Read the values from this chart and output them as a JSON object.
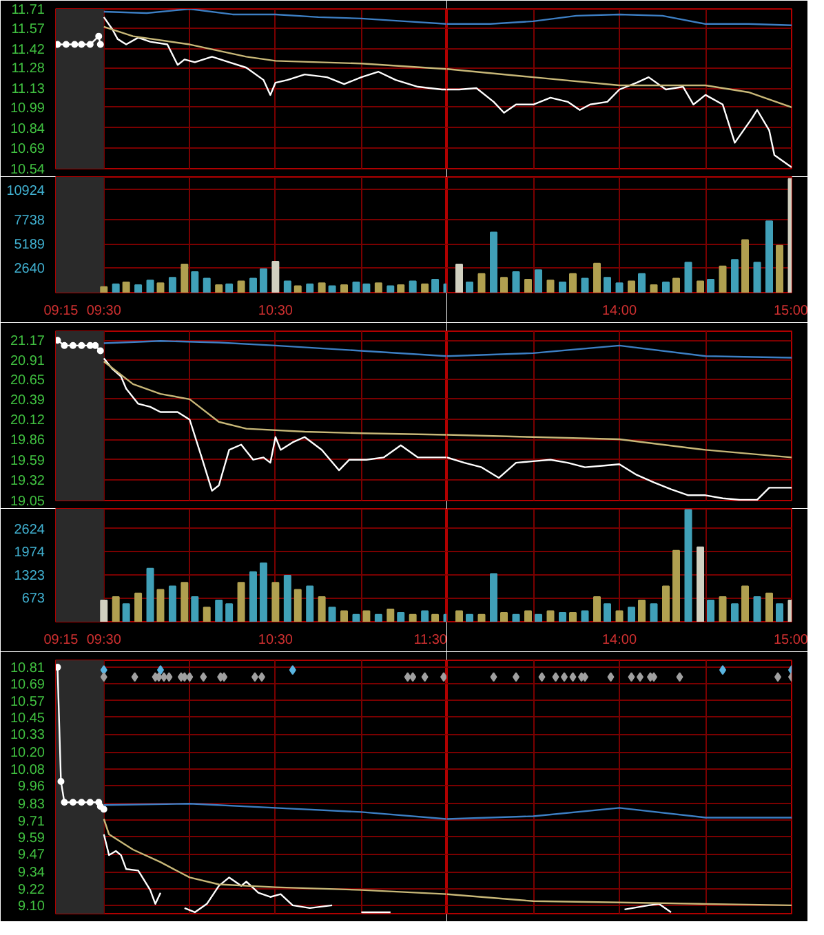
{
  "chart_data": [
    {
      "type": "line",
      "xlim": [
        9.22,
        11.5
      ],
      "ylim": [
        10.54,
        11.71
      ],
      "tick_labels": "y",
      "grid": true,
      "xticks": [
        {
          "value": 9.25,
          "label": null
        },
        {
          "value": 9.5,
          "label": null
        },
        {
          "value": 10,
          "label": null
        },
        {
          "value": 10.5,
          "label": null
        },
        {
          "value": 11,
          "label": null
        },
        {
          "value": 11.5,
          "label": null
        }
      ],
      "yticks": [
        11.71,
        11.57,
        11.42,
        11.28,
        11.13,
        10.99,
        10.84,
        10.69,
        10.54
      ],
      "bands": [
        {
          "axis": "x",
          "from": 9.22,
          "to": 9.5,
          "color": "#2a2a2a"
        }
      ],
      "series": [
        {
          "color": "#ffffff",
          "marker": "circle",
          "x": [
            9.23,
            9.28,
            9.33,
            9.37,
            9.42,
            9.47,
            9.48
          ],
          "values": [
            11.45,
            11.45,
            11.45,
            11.45,
            11.45,
            11.51,
            11.45
          ]
        },
        {
          "color": "#ffffff",
          "x": [
            9.5,
            9.55,
            9.58,
            9.63,
            9.7,
            9.77,
            9.87,
            9.93,
            9.97,
            10.03,
            10.13,
            10.23,
            10.33,
            10.43,
            10.47,
            10.5,
            10.57,
            10.67,
            10.8,
            10.9,
            11,
            11.1,
            11.2,
            11.33,
            11.47,
            11.5
          ],
          "values": [
            11.65,
            11.56,
            11.49,
            11.45,
            11.5,
            11.47,
            11.45,
            11.3,
            11.34,
            11.32,
            11.36,
            11.32,
            11.28,
            11.19,
            11.08,
            11.17,
            11.19,
            11.23,
            11.21,
            11.16,
            11.21,
            11.25,
            11.19,
            11.14,
            11.12,
            11.12
          ]
        },
        {
          "color": "#c8b878",
          "x": [
            9.5,
            9.67,
            10,
            10.33,
            10.5,
            11,
            11.5
          ],
          "values": [
            11.58,
            11.51,
            11.45,
            11.36,
            11.33,
            11.31,
            11.27
          ]
        },
        {
          "color": "#3d7fc4",
          "x": [
            9.5,
            9.75,
            10,
            10.25,
            10.5,
            10.75,
            11,
            11.25,
            11.5
          ],
          "values": [
            11.69,
            11.68,
            11.71,
            11.67,
            11.67,
            11.65,
            11.64,
            11.62,
            11.6
          ]
        }
      ]
    },
    {
      "type": "line",
      "xlim": [
        13,
        15
      ],
      "ylim": [
        10.54,
        11.71
      ],
      "tick_labels": false,
      "grid": true,
      "xticks": [
        {
          "value": 13.5,
          "label": null
        },
        {
          "value": 14,
          "label": null
        },
        {
          "value": 14.5,
          "label": null
        },
        {
          "value": 15,
          "label": null
        }
      ],
      "yticks": [
        11.71,
        11.57,
        11.42,
        11.28,
        11.13,
        10.99,
        10.84,
        10.69,
        10.54
      ],
      "series": [
        {
          "color": "#ffffff",
          "x": [
            13,
            13.07,
            13.17,
            13.27,
            13.33,
            13.4,
            13.5,
            13.6,
            13.7,
            13.77,
            13.83,
            13.93,
            14,
            14.1,
            14.17,
            14.27,
            14.37,
            14.43,
            14.5,
            14.6,
            14.67,
            14.77,
            14.8,
            14.87,
            14.9,
            15
          ],
          "values": [
            11.12,
            11.12,
            11.13,
            11.03,
            10.95,
            11.01,
            11.01,
            11.06,
            11.03,
            10.97,
            11.01,
            11.03,
            11.12,
            11.17,
            11.21,
            11.12,
            11.14,
            11.01,
            11.08,
            11.01,
            10.73,
            10.91,
            10.97,
            10.82,
            10.64,
            10.55
          ]
        },
        {
          "color": "#c8b878",
          "x": [
            13,
            13.5,
            14,
            14.5,
            14.75,
            15
          ],
          "values": [
            11.27,
            11.21,
            11.15,
            11.15,
            11.1,
            10.99
          ]
        },
        {
          "color": "#3d7fc4",
          "x": [
            13,
            13.25,
            13.5,
            13.75,
            14,
            14.25,
            14.5,
            14.75,
            15
          ],
          "values": [
            11.6,
            11.6,
            11.62,
            11.66,
            11.67,
            11.66,
            11.6,
            11.6,
            11.59
          ]
        }
      ]
    },
    {
      "type": "bar",
      "xlim": [
        9.22,
        11.5
      ],
      "ylim": [
        0,
        12300
      ],
      "grid": true,
      "xticks": [
        {
          "value": 9.25,
          "label": "09:15"
        },
        {
          "value": 9.5,
          "label": "09:30"
        },
        {
          "value": 10,
          "label": null
        },
        {
          "value": 10.5,
          "label": "10:30"
        },
        {
          "value": 11,
          "label": null
        },
        {
          "value": 11.5,
          "label": null
        }
      ],
      "yticks": [
        2640,
        5189,
        7738,
        10924
      ],
      "bands": [
        {
          "axis": "x",
          "from": 9.22,
          "to": 9.5,
          "color": "#2a2a2a"
        }
      ],
      "x": [
        9.5,
        9.57,
        9.63,
        9.7,
        9.77,
        9.83,
        9.9,
        9.97,
        10.03,
        10.1,
        10.17,
        10.23,
        10.3,
        10.37,
        10.43,
        10.5,
        10.57,
        10.63,
        10.7,
        10.77,
        10.83,
        10.9,
        10.97,
        11.03,
        11.1,
        11.17,
        11.23,
        11.3,
        11.37,
        11.43,
        11.5
      ],
      "values": [
        600,
        900,
        1100,
        800,
        1300,
        1000,
        1600,
        3000,
        2200,
        1500,
        800,
        900,
        1200,
        1500,
        2500,
        3300,
        1200,
        700,
        900,
        1000,
        700,
        800,
        1100,
        900,
        1000,
        700,
        800,
        1200,
        900,
        1400,
        900
      ],
      "colors": [
        "#b0a050",
        "#40a0b8",
        "#b0a050",
        "#40a0b8",
        "#40a0b8",
        "#b0a050",
        "#40a0b8",
        "#b0a050",
        "#40a0b8",
        "#40a0b8",
        "#b0a050",
        "#40a0b8",
        "#b0a050",
        "#40a0b8",
        "#40a0b8",
        "#d0d0c0",
        "#40a0b8",
        "#b0a050",
        "#40a0b8",
        "#b0a050",
        "#40a0b8",
        "#b0a050",
        "#40a0b8",
        "#40a0b8",
        "#b0a050",
        "#40a0b8",
        "#b0a050",
        "#40a0b8",
        "#b0a050",
        "#40a0b8",
        "#40a0b8"
      ]
    },
    {
      "type": "bar",
      "xlim": [
        13,
        15
      ],
      "ylim": [
        0,
        12300
      ],
      "tick_labels": "x",
      "grid": true,
      "xticks": [
        {
          "value": 13.5,
          "label": null
        },
        {
          "value": 14,
          "label": "14:00"
        },
        {
          "value": 14.5,
          "label": null
        },
        {
          "value": 15,
          "label": "15:00"
        }
      ],
      "yticks": [
        2640,
        5189,
        7738,
        10924
      ],
      "x": [
        13.07,
        13.13,
        13.2,
        13.27,
        13.33,
        13.4,
        13.47,
        13.53,
        13.6,
        13.67,
        13.73,
        13.8,
        13.87,
        13.93,
        14,
        14.07,
        14.13,
        14.2,
        14.27,
        14.33,
        14.4,
        14.47,
        14.53,
        14.6,
        14.67,
        14.73,
        14.8,
        14.87,
        14.93,
        15
      ],
      "values": [
        3000,
        1100,
        2000,
        6400,
        1600,
        2200,
        1400,
        2400,
        1300,
        1100,
        2000,
        1500,
        3100,
        1600,
        1000,
        1200,
        2000,
        800,
        1100,
        1500,
        3200,
        1200,
        1400,
        2800,
        3500,
        5600,
        3200,
        7600,
        5000,
        12100
      ],
      "colors": [
        "#d0d0c0",
        "#40a0b8",
        "#b0a050",
        "#40a0b8",
        "#b0a050",
        "#40a0b8",
        "#b0a050",
        "#40a0b8",
        "#b0a050",
        "#40a0b8",
        "#b0a050",
        "#40a0b8",
        "#b0a050",
        "#40a0b8",
        "#40a0b8",
        "#b0a050",
        "#40a0b8",
        "#b0a050",
        "#40a0b8",
        "#b0a050",
        "#40a0b8",
        "#b0a050",
        "#40a0b8",
        "#b0a050",
        "#40a0b8",
        "#b0a050",
        "#40a0b8",
        "#40a0b8",
        "#b0a050",
        "#d0d0c0"
      ]
    },
    {
      "type": "line",
      "xlim": [
        9.22,
        11.5
      ],
      "ylim": [
        19.05,
        21.29
      ],
      "tick_labels": "y",
      "grid": true,
      "xticks": [
        {
          "value": 9.25,
          "label": null
        },
        {
          "value": 9.5,
          "label": null
        },
        {
          "value": 10,
          "label": null
        },
        {
          "value": 10.5,
          "label": null
        },
        {
          "value": 11,
          "label": null
        },
        {
          "value": 11.5,
          "label": null
        }
      ],
      "yticks": [
        21.17,
        20.91,
        20.65,
        20.39,
        20.12,
        19.86,
        19.59,
        19.32,
        19.05
      ],
      "bands": [
        {
          "axis": "x",
          "from": 9.22,
          "to": 9.5,
          "color": "#2a2a2a"
        }
      ],
      "series": [
        {
          "color": "#ffffff",
          "marker": "circle",
          "x": [
            9.23,
            9.27,
            9.32,
            9.37,
            9.42,
            9.45,
            9.48
          ],
          "values": [
            21.17,
            21.1,
            21.1,
            21.1,
            21.1,
            21.1,
            21.03
          ]
        },
        {
          "color": "#ffffff",
          "x": [
            9.5,
            9.55,
            9.6,
            9.63,
            9.7,
            9.77,
            9.83,
            9.93,
            10,
            10.07,
            10.13,
            10.17,
            10.23,
            10.3,
            10.37,
            10.43,
            10.47,
            10.5,
            10.53,
            10.6,
            10.67,
            10.77,
            10.87,
            10.93,
            11.03,
            11.13,
            11.23,
            11.33,
            11.43,
            11.5
          ],
          "values": [
            20.93,
            20.79,
            20.69,
            20.53,
            20.33,
            20.29,
            20.22,
            20.22,
            20.12,
            19.62,
            19.18,
            19.25,
            19.72,
            19.79,
            19.59,
            19.62,
            19.55,
            19.89,
            19.72,
            19.82,
            19.89,
            19.72,
            19.45,
            19.59,
            19.59,
            19.62,
            19.78,
            19.62,
            19.62,
            19.62
          ]
        },
        {
          "color": "#c8b878",
          "x": [
            9.5,
            9.67,
            9.83,
            10,
            10.17,
            10.33,
            10.67,
            11,
            11.5
          ],
          "values": [
            20.89,
            20.59,
            20.46,
            20.39,
            20.09,
            20.0,
            19.96,
            19.94,
            19.92
          ]
        },
        {
          "color": "#3d7fc4",
          "x": [
            9.5,
            9.83,
            10.17,
            10.5,
            11,
            11.5
          ],
          "values": [
            21.13,
            21.16,
            21.14,
            21.1,
            21.03,
            20.96
          ]
        }
      ]
    },
    {
      "type": "line",
      "xlim": [
        13,
        15
      ],
      "ylim": [
        19.05,
        21.29
      ],
      "tick_labels": false,
      "grid": true,
      "xticks": [
        {
          "value": 13.5,
          "label": null
        },
        {
          "value": 14,
          "label": null
        },
        {
          "value": 14.5,
          "label": null
        },
        {
          "value": 15,
          "label": null
        }
      ],
      "yticks": [
        21.17,
        20.91,
        20.65,
        20.39,
        20.12,
        19.86,
        19.59,
        19.32,
        19.05
      ],
      "series": [
        {
          "color": "#ffffff",
          "x": [
            13,
            13.1,
            13.2,
            13.3,
            13.4,
            13.5,
            13.6,
            13.7,
            13.8,
            13.9,
            14,
            14.1,
            14.2,
            14.3,
            14.4,
            14.5,
            14.6,
            14.7,
            14.8,
            14.87,
            15
          ],
          "values": [
            19.62,
            19.55,
            19.49,
            19.35,
            19.55,
            19.57,
            19.59,
            19.55,
            19.49,
            19.51,
            19.53,
            19.39,
            19.29,
            19.2,
            19.12,
            19.12,
            19.08,
            19.06,
            19.06,
            19.22,
            19.22
          ]
        },
        {
          "color": "#c8b878",
          "x": [
            13,
            13.5,
            14,
            14.5,
            15
          ],
          "values": [
            19.92,
            19.89,
            19.86,
            19.72,
            19.62
          ]
        },
        {
          "color": "#3d7fc4",
          "x": [
            13,
            13.5,
            14,
            14.5,
            15
          ],
          "values": [
            20.96,
            21.0,
            21.1,
            20.96,
            20.94
          ]
        }
      ]
    },
    {
      "type": "bar",
      "xlim": [
        9.22,
        11.5
      ],
      "ylim": [
        0,
        3180
      ],
      "grid": true,
      "xticks": [
        {
          "value": 9.25,
          "label": "09:15"
        },
        {
          "value": 9.5,
          "label": "09:30"
        },
        {
          "value": 10,
          "label": null
        },
        {
          "value": 10.5,
          "label": "10:30"
        },
        {
          "value": 11,
          "label": null
        },
        {
          "value": 11.5,
          "label": "11:30"
        }
      ],
      "yticks": [
        673,
        1323,
        1974,
        2624
      ],
      "bands": [
        {
          "axis": "x",
          "from": 9.22,
          "to": 9.5,
          "color": "#2a2a2a"
        }
      ],
      "x": [
        9.5,
        9.57,
        9.63,
        9.7,
        9.77,
        9.83,
        9.9,
        9.97,
        10.03,
        10.1,
        10.17,
        10.23,
        10.3,
        10.37,
        10.43,
        10.5,
        10.57,
        10.63,
        10.7,
        10.77,
        10.83,
        10.9,
        10.97,
        11.03,
        11.1,
        11.17,
        11.23,
        11.3,
        11.37,
        11.43,
        11.5
      ],
      "values": [
        600,
        700,
        500,
        800,
        1500,
        900,
        1000,
        1100,
        700,
        400,
        600,
        500,
        1100,
        1400,
        1650,
        1100,
        1300,
        900,
        1000,
        700,
        400,
        300,
        200,
        300,
        200,
        350,
        250,
        200,
        300,
        200,
        200
      ],
      "colors": [
        "#d0d0c0",
        "#b0a050",
        "#40a0b8",
        "#b0a050",
        "#40a0b8",
        "#b0a050",
        "#40a0b8",
        "#b0a050",
        "#40a0b8",
        "#b0a050",
        "#40a0b8",
        "#40a0b8",
        "#b0a050",
        "#40a0b8",
        "#40a0b8",
        "#b0a050",
        "#40a0b8",
        "#b0a050",
        "#40a0b8",
        "#b0a050",
        "#40a0b8",
        "#b0a050",
        "#40a0b8",
        "#b0a050",
        "#40a0b8",
        "#b0a050",
        "#40a0b8",
        "#b0a050",
        "#40a0b8",
        "#b0a050",
        "#40a0b8"
      ]
    },
    {
      "type": "bar",
      "xlim": [
        13,
        15
      ],
      "ylim": [
        0,
        3180
      ],
      "tick_labels": "x",
      "grid": true,
      "xticks": [
        {
          "value": 13.5,
          "label": null
        },
        {
          "value": 14,
          "label": "14:00"
        },
        {
          "value": 14.5,
          "label": null
        },
        {
          "value": 15,
          "label": "15:00"
        }
      ],
      "yticks": [
        673,
        1323,
        1974,
        2624
      ],
      "x": [
        13.07,
        13.13,
        13.2,
        13.27,
        13.33,
        13.4,
        13.47,
        13.53,
        13.6,
        13.67,
        13.73,
        13.8,
        13.87,
        13.93,
        14,
        14.07,
        14.13,
        14.2,
        14.27,
        14.33,
        14.4,
        14.47,
        14.53,
        14.6,
        14.67,
        14.73,
        14.8,
        14.87,
        14.93,
        15
      ],
      "values": [
        300,
        200,
        200,
        1350,
        250,
        200,
        300,
        200,
        300,
        250,
        250,
        300,
        700,
        500,
        300,
        400,
        600,
        500,
        1000,
        2000,
        3150,
        2100,
        600,
        700,
        500,
        1000,
        700,
        800,
        500,
        600
      ],
      "colors": [
        "#b0a050",
        "#40a0b8",
        "#b0a050",
        "#40a0b8",
        "#b0a050",
        "#40a0b8",
        "#b0a050",
        "#40a0b8",
        "#b0a050",
        "#40a0b8",
        "#b0a050",
        "#40a0b8",
        "#b0a050",
        "#40a0b8",
        "#b0a050",
        "#40a0b8",
        "#b0a050",
        "#40a0b8",
        "#b0a050",
        "#b0a050",
        "#40a0b8",
        "#d0d0c0",
        "#40a0b8",
        "#b0a050",
        "#40a0b8",
        "#b0a050",
        "#40a0b8",
        "#b0a050",
        "#40a0b8",
        "#d0d0c0"
      ]
    },
    {
      "type": "line",
      "xlim": [
        9.22,
        11.5
      ],
      "ylim": [
        9.04,
        10.86
      ],
      "tick_labels": "y",
      "grid": true,
      "xticks": [
        {
          "value": 9.25,
          "label": null
        },
        {
          "value": 9.5,
          "label": null
        },
        {
          "value": 10,
          "label": null
        },
        {
          "value": 10.5,
          "label": null
        },
        {
          "value": 11,
          "label": null
        },
        {
          "value": 11.5,
          "label": null
        }
      ],
      "yticks": [
        10.81,
        10.69,
        10.57,
        10.45,
        10.33,
        {
          "value": 10.2,
          "label": "10.20"
        },
        10.08,
        9.96,
        9.83,
        9.71,
        9.59,
        9.47,
        9.34,
        9.22,
        {
          "value": 9.1,
          "label": "9.10"
        }
      ],
      "bands": [
        {
          "axis": "x",
          "from": 9.22,
          "to": 9.5,
          "color": "#2a2a2a"
        }
      ],
      "series": [
        {
          "color": "#ffffff",
          "marker": "circle",
          "x": [
            9.23,
            9.25,
            9.27,
            9.32,
            9.37,
            9.42,
            9.47,
            9.48,
            9.5
          ],
          "values": [
            10.81,
            9.99,
            9.84,
            9.84,
            9.84,
            9.84,
            9.84,
            9.81,
            9.79
          ]
        },
        {
          "color": "#ffffff",
          "x": [
            9.5,
            9.53,
            9.57,
            9.6,
            9.63,
            9.7,
            9.77,
            9.8,
            9.83,
            9.9,
            9.97,
            10.03,
            10.1,
            10.17,
            10.23,
            10.3,
            10.33,
            10.4,
            10.47,
            10.53,
            10.6,
            10.7,
            10.83,
            10.93,
            11,
            11.1,
            11.17
          ],
          "values": [
            9.61,
            9.46,
            9.49,
            9.46,
            9.36,
            9.35,
            9.21,
            9.11,
            9.19,
            null,
            9.08,
            9.05,
            9.11,
            9.24,
            9.3,
            9.24,
            9.27,
            9.19,
            9.16,
            9.18,
            9.1,
            9.08,
            9.1,
            null,
            9.05,
            9.05,
            9.05
          ]
        },
        {
          "color": "#c8b878",
          "x": [
            9.5,
            9.53,
            9.67,
            9.83,
            10,
            10.17,
            10.5,
            11,
            11.5
          ],
          "values": [
            9.72,
            9.61,
            9.5,
            9.41,
            9.3,
            9.25,
            9.23,
            9.21,
            9.18
          ]
        },
        {
          "color": "#3d7fc4",
          "x": [
            9.5,
            10,
            10.5,
            11,
            11.5
          ],
          "values": [
            9.82,
            9.83,
            9.8,
            9.77,
            9.72
          ]
        },
        {
          "type": "scatter",
          "marker": "diamond",
          "color": "#5ab4e0",
          "x": [
            9.5,
            9.83,
            10.6
          ],
          "values": [
            10.79,
            10.79,
            10.79
          ]
        },
        {
          "type": "scatter",
          "marker": "diamond",
          "color": "#a0a0a0",
          "x": [
            9.5,
            9.68,
            9.8,
            9.82,
            9.85,
            9.88,
            9.95,
            9.97,
            10,
            10.08,
            10.18,
            10.2,
            10.38,
            10.42,
            11.27,
            11.3,
            11.37,
            11.48
          ],
          "values": [
            10.74,
            10.74,
            10.74,
            10.74,
            10.74,
            10.74,
            10.74,
            10.74,
            10.74,
            10.74,
            10.74,
            10.74,
            10.74,
            10.74,
            10.74,
            10.74,
            10.74,
            10.74
          ]
        }
      ]
    },
    {
      "type": "line",
      "xlim": [
        13,
        15
      ],
      "ylim": [
        9.04,
        10.86
      ],
      "tick_labels": false,
      "grid": true,
      "xticks": [
        {
          "value": 13.5,
          "label": null
        },
        {
          "value": 14,
          "label": null
        },
        {
          "value": 14.5,
          "label": null
        },
        {
          "value": 15,
          "label": null
        }
      ],
      "yticks": [
        10.81,
        10.69,
        10.57,
        10.45,
        10.33,
        10.2,
        10.08,
        9.96,
        9.83,
        9.71,
        9.59,
        9.47,
        9.34,
        9.22,
        9.1
      ],
      "series": [
        {
          "color": "#ffffff",
          "x": [
            14.03,
            14.17,
            14.23,
            14.3
          ],
          "values": [
            9.07,
            9.1,
            9.11,
            9.05
          ]
        },
        {
          "color": "#c8b878",
          "x": [
            13,
            13.5,
            14,
            14.5,
            15
          ],
          "values": [
            9.18,
            9.13,
            9.12,
            9.11,
            9.1
          ]
        },
        {
          "color": "#3d7fc4",
          "x": [
            13,
            13.5,
            14,
            14.5,
            15
          ],
          "values": [
            9.72,
            9.74,
            9.8,
            9.73,
            9.73
          ]
        },
        {
          "type": "scatter",
          "marker": "diamond",
          "color": "#5ab4e0",
          "x": [
            14.6,
            15
          ],
          "values": [
            10.79,
            10.79
          ]
        },
        {
          "type": "scatter",
          "marker": "diamond",
          "color": "#a0a0a0",
          "x": [
            13.27,
            13.4,
            13.55,
            13.63,
            13.68,
            13.73,
            13.78,
            13.8,
            13.95,
            14.07,
            14.12,
            14.18,
            14.2,
            14.35,
            14.92,
            15
          ],
          "values": [
            10.74,
            10.74,
            10.74,
            10.74,
            10.74,
            10.74,
            10.74,
            10.74,
            10.74,
            10.74,
            10.74,
            10.74,
            10.74,
            10.74,
            10.74,
            10.74
          ]
        }
      ]
    }
  ]
}
